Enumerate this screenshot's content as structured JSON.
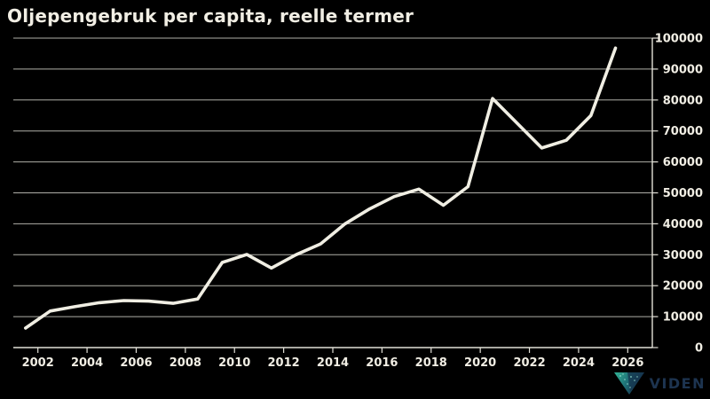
{
  "window": {
    "title": "Oljepengebruk per capita, reelle termer"
  },
  "chart_data": {
    "type": "line",
    "title": "Oljepengebruk per capita, reelle termer",
    "xlabel": "",
    "ylabel": "",
    "legend": false,
    "grid": true,
    "x": [
      2001,
      2002,
      2003,
      2004,
      2005,
      2006,
      2007,
      2008,
      2009,
      2010,
      2011,
      2012,
      2013,
      2014,
      2015,
      2016,
      2017,
      2018,
      2019,
      2020,
      2021,
      2022,
      2023,
      2024,
      2025
    ],
    "series": [
      {
        "name": "Oljepengebruk per capita",
        "values": [
          6300,
          11800,
          13200,
          14500,
          15200,
          15000,
          14300,
          15700,
          27500,
          30100,
          25700,
          30000,
          33500,
          40000,
          44800,
          48800,
          51200,
          46000,
          52000,
          80500,
          72500,
          64500,
          67000,
          75000,
          96800
        ]
      }
    ],
    "x_ticks": [
      2002,
      2004,
      2006,
      2008,
      2010,
      2012,
      2014,
      2016,
      2018,
      2020,
      2022,
      2024,
      2026
    ],
    "y_ticks": [
      0,
      10000,
      20000,
      30000,
      40000,
      50000,
      60000,
      70000,
      80000,
      90000,
      100000
    ],
    "x_range": [
      2001,
      2027
    ],
    "y_range": [
      0,
      100000
    ],
    "point_offset": 0.5,
    "y_axis_side": "right"
  },
  "colors": {
    "background": "#000000",
    "line": "#f0eee3",
    "grid": "#b0afa8",
    "axis": "#e3e1d8",
    "text": "#f1eee4",
    "brand_text": "#1d3450",
    "logo_teal": "#2fa890",
    "logo_teal_light": "#8fd6c6",
    "logo_navy": "#16344e"
  },
  "footer": {
    "brand": "VIDEN"
  }
}
